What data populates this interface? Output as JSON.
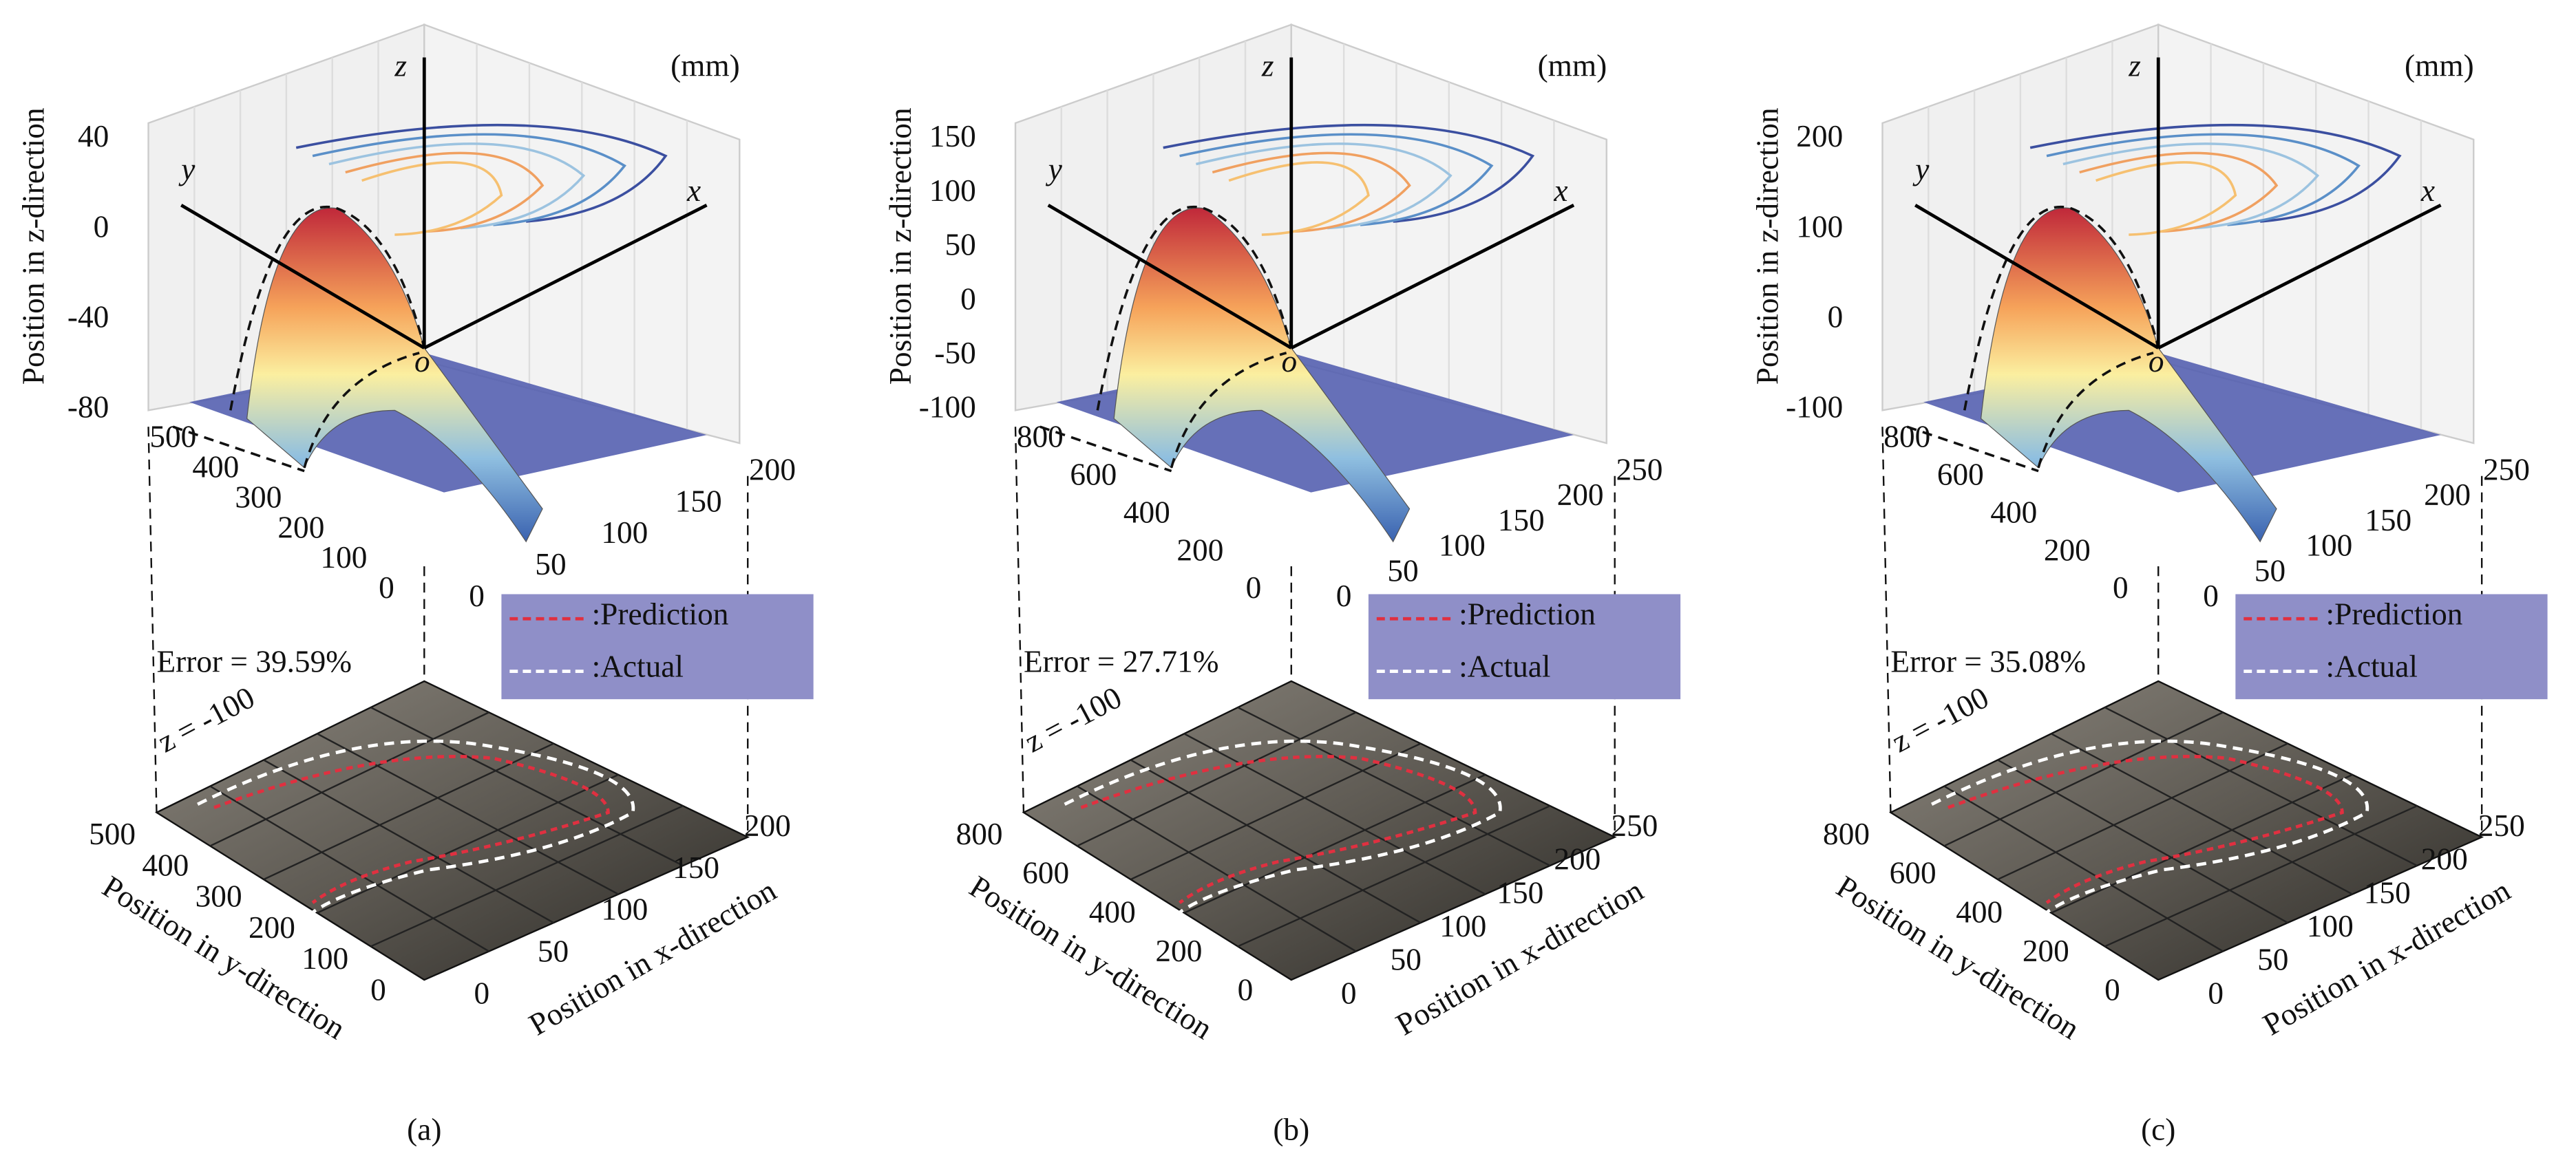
{
  "panels": [
    {
      "label": "(a)",
      "unit": "(mm)",
      "axes": {
        "x": "x",
        "y": "y",
        "z": "z",
        "origin": "o"
      },
      "z_title": "Position in z-direction",
      "z_ticks": [
        "40",
        "0",
        "-40",
        "-80"
      ],
      "y_ticks": [
        "500",
        "400",
        "300",
        "200",
        "100",
        "0"
      ],
      "x_ticks": [
        "0",
        "50",
        "100",
        "150",
        "200"
      ],
      "error": "Error = 39.59%",
      "legend": [
        ":Prediction",
        ":Actual"
      ],
      "slice": "z = -100",
      "bottom_y_ticks": [
        "500",
        "400",
        "300",
        "200",
        "100",
        "0"
      ],
      "bottom_x_ticks": [
        "0",
        "50",
        "100",
        "150",
        "200"
      ],
      "y_title": "Position in y-direction",
      "x_title": "Position in x-direction"
    },
    {
      "label": "(b)",
      "unit": "(mm)",
      "axes": {
        "x": "x",
        "y": "y",
        "z": "z",
        "origin": "o"
      },
      "z_title": "Position in z-direction",
      "z_ticks": [
        "150",
        "100",
        "50",
        "0",
        "-50",
        "-100"
      ],
      "y_ticks": [
        "800",
        "600",
        "400",
        "200",
        "0"
      ],
      "x_ticks": [
        "0",
        "50",
        "100",
        "150",
        "200",
        "250"
      ],
      "error": "Error = 27.71%",
      "legend": [
        ":Prediction",
        ":Actual"
      ],
      "slice": "z = -100",
      "bottom_y_ticks": [
        "800",
        "600",
        "400",
        "200",
        "0"
      ],
      "bottom_x_ticks": [
        "0",
        "50",
        "100",
        "150",
        "200",
        "250"
      ],
      "y_title": "Position in y-direction",
      "x_title": "Position in x-direction"
    },
    {
      "label": "(c)",
      "unit": "(mm)",
      "axes": {
        "x": "x",
        "y": "y",
        "z": "z",
        "origin": "o"
      },
      "z_title": "Position in z-direction",
      "z_ticks": [
        "200",
        "100",
        "0",
        "-100"
      ],
      "y_ticks": [
        "800",
        "600",
        "400",
        "200",
        "0"
      ],
      "x_ticks": [
        "0",
        "50",
        "100",
        "150",
        "200",
        "250"
      ],
      "error": "Error = 35.08%",
      "legend": [
        ":Prediction",
        ":Actual"
      ],
      "slice": "z = -100",
      "bottom_y_ticks": [
        "800",
        "600",
        "400",
        "200",
        "0"
      ],
      "bottom_x_ticks": [
        "0",
        "50",
        "100",
        "150",
        "200",
        "250"
      ],
      "y_title": "Position in y-direction",
      "x_title": "Position in x-direction"
    }
  ]
}
